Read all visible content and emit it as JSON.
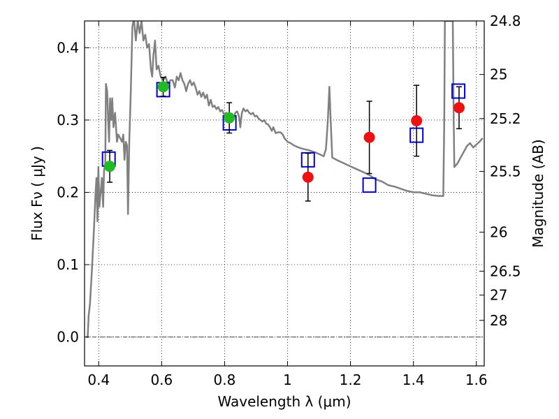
{
  "chart_data": {
    "type": "scatter",
    "xlabel": "Wavelength  λ (μm)",
    "ylabel": "Flux  Fν  ( μJy )",
    "y2label": "Magnitude (AB)",
    "xlim": [
      0.355,
      1.625
    ],
    "ylim": [
      -0.04,
      0.437
    ],
    "grid": true,
    "x_ticks": [
      0.4,
      0.6,
      0.8,
      1.0,
      1.2,
      1.4,
      1.6
    ],
    "x_tick_labels": [
      "0.4",
      "0.6",
      "0.8",
      "1",
      "1.2",
      "1.4",
      "1.6"
    ],
    "y_ticks": [
      0.0,
      0.1,
      0.2,
      0.3,
      0.4
    ],
    "y_tick_labels": [
      "0.0",
      "0.1",
      "0.2",
      "0.3",
      "0.4"
    ],
    "y2_tick_labels": [
      {
        "label": "24.8",
        "flux": 0.437
      },
      {
        "label": "25",
        "flux": 0.363
      },
      {
        "label": "25.2",
        "flux": 0.302
      },
      {
        "label": "25.5",
        "flux": 0.229
      },
      {
        "label": "26",
        "flux": 0.145
      },
      {
        "label": "26.5",
        "flux": 0.091
      },
      {
        "label": "27",
        "flux": 0.058
      },
      {
        "label": "28",
        "flux": 0.023
      }
    ],
    "colors": {
      "model": "#808080",
      "green": "#22bb22",
      "red": "#ee1111",
      "box": "#0000cc",
      "err": "#000000",
      "zero": "#444444"
    },
    "series": [
      {
        "type": "line",
        "color": "#808080",
        "points": [
          [
            0.36,
            0.0
          ],
          [
            0.365,
            0.0
          ],
          [
            0.368,
            0.03
          ],
          [
            0.372,
            0.045
          ],
          [
            0.378,
            0.09
          ],
          [
            0.385,
            0.15
          ],
          [
            0.39,
            0.2
          ],
          [
            0.393,
            0.22
          ],
          [
            0.396,
            0.16
          ],
          [
            0.399,
            0.235
          ],
          [
            0.402,
            0.18
          ],
          [
            0.406,
            0.2
          ],
          [
            0.41,
            0.22
          ],
          [
            0.414,
            0.18
          ],
          [
            0.417,
            0.23
          ],
          [
            0.421,
            0.24
          ],
          [
            0.423,
            0.35
          ],
          [
            0.427,
            0.34
          ],
          [
            0.43,
            0.3
          ],
          [
            0.433,
            0.27
          ],
          [
            0.436,
            0.33
          ],
          [
            0.44,
            0.3
          ],
          [
            0.443,
            0.33
          ],
          [
            0.447,
            0.29
          ],
          [
            0.452,
            0.31
          ],
          [
            0.458,
            0.27
          ],
          [
            0.462,
            0.28
          ],
          [
            0.468,
            0.275
          ],
          [
            0.474,
            0.27
          ],
          [
            0.478,
            0.28
          ],
          [
            0.482,
            0.245
          ],
          [
            0.486,
            0.27
          ],
          [
            0.49,
            0.265
          ],
          [
            0.493,
            0.17
          ],
          [
            0.497,
            0.27
          ],
          [
            0.502,
            0.34
          ],
          [
            0.507,
            0.43
          ],
          [
            0.512,
            0.44
          ],
          [
            0.518,
            0.41
          ],
          [
            0.524,
            0.437
          ],
          [
            0.53,
            0.42
          ],
          [
            0.536,
            0.437
          ],
          [
            0.542,
            0.41
          ],
          [
            0.548,
            0.418
          ],
          [
            0.554,
            0.4
          ],
          [
            0.56,
            0.405
          ],
          [
            0.566,
            0.37
          ],
          [
            0.57,
            0.36
          ],
          [
            0.574,
            0.39
          ],
          [
            0.579,
            0.41
          ],
          [
            0.584,
            0.37
          ],
          [
            0.59,
            0.375
          ],
          [
            0.597,
            0.36
          ],
          [
            0.605,
            0.355
          ],
          [
            0.612,
            0.36
          ],
          [
            0.62,
            0.35
          ],
          [
            0.628,
            0.355
          ],
          [
            0.635,
            0.355
          ],
          [
            0.642,
            0.345
          ],
          [
            0.648,
            0.36
          ],
          [
            0.654,
            0.355
          ],
          [
            0.66,
            0.365
          ],
          [
            0.666,
            0.355
          ],
          [
            0.672,
            0.35
          ],
          [
            0.678,
            0.34
          ],
          [
            0.684,
            0.35
          ],
          [
            0.69,
            0.355
          ],
          [
            0.696,
            0.348
          ],
          [
            0.702,
            0.352
          ],
          [
            0.708,
            0.345
          ],
          [
            0.714,
            0.335
          ],
          [
            0.72,
            0.34
          ],
          [
            0.726,
            0.332
          ],
          [
            0.732,
            0.338
          ],
          [
            0.738,
            0.33
          ],
          [
            0.744,
            0.335
          ],
          [
            0.75,
            0.32
          ],
          [
            0.756,
            0.328
          ],
          [
            0.762,
            0.318
          ],
          [
            0.768,
            0.32
          ],
          [
            0.774,
            0.315
          ],
          [
            0.78,
            0.318
          ],
          [
            0.786,
            0.312
          ],
          [
            0.792,
            0.314
          ],
          [
            0.798,
            0.308
          ],
          [
            0.805,
            0.31
          ],
          [
            0.812,
            0.305
          ],
          [
            0.82,
            0.308
          ],
          [
            0.828,
            0.3
          ],
          [
            0.834,
            0.31
          ],
          [
            0.84,
            0.312
          ],
          [
            0.846,
            0.305
          ],
          [
            0.85,
            0.29
          ],
          [
            0.855,
            0.31
          ],
          [
            0.86,
            0.316
          ],
          [
            0.866,
            0.312
          ],
          [
            0.872,
            0.314
          ],
          [
            0.878,
            0.31
          ],
          [
            0.884,
            0.308
          ],
          [
            0.89,
            0.31
          ],
          [
            0.896,
            0.305
          ],
          [
            0.902,
            0.306
          ],
          [
            0.908,
            0.302
          ],
          [
            0.914,
            0.3
          ],
          [
            0.92,
            0.298
          ],
          [
            0.926,
            0.3
          ],
          [
            0.932,
            0.295
          ],
          [
            0.938,
            0.294
          ],
          [
            0.944,
            0.29
          ],
          [
            0.95,
            0.285
          ],
          [
            0.955,
            0.29
          ],
          [
            0.962,
            0.282
          ],
          [
            0.97,
            0.283
          ],
          [
            0.978,
            0.283
          ],
          [
            0.985,
            0.28
          ],
          [
            0.99,
            0.275
          ],
          [
            1.0,
            0.27
          ],
          [
            1.01,
            0.268
          ],
          [
            1.02,
            0.265
          ],
          [
            1.035,
            0.262
          ],
          [
            1.05,
            0.26
          ],
          [
            1.07,
            0.258
          ],
          [
            1.09,
            0.255
          ],
          [
            1.105,
            0.252
          ],
          [
            1.115,
            0.25
          ],
          [
            1.122,
            0.26
          ],
          [
            1.128,
            0.3
          ],
          [
            1.133,
            0.346
          ],
          [
            1.137,
            0.3
          ],
          [
            1.142,
            0.248
          ],
          [
            1.16,
            0.244
          ],
          [
            1.18,
            0.24
          ],
          [
            1.2,
            0.236
          ],
          [
            1.22,
            0.232
          ],
          [
            1.24,
            0.228
          ],
          [
            1.26,
            0.224
          ],
          [
            1.28,
            0.218
          ],
          [
            1.3,
            0.215
          ],
          [
            1.32,
            0.21
          ],
          [
            1.34,
            0.208
          ],
          [
            1.36,
            0.205
          ],
          [
            1.38,
            0.202
          ],
          [
            1.4,
            0.2
          ],
          [
            1.42,
            0.2
          ],
          [
            1.44,
            0.198
          ],
          [
            1.46,
            0.196
          ],
          [
            1.48,
            0.195
          ],
          [
            1.495,
            0.195
          ],
          [
            1.498,
            0.3
          ],
          [
            1.5,
            0.437
          ],
          [
            1.505,
            0.437
          ],
          [
            1.52,
            0.437
          ],
          [
            1.525,
            0.437
          ],
          [
            1.528,
            0.3
          ],
          [
            1.53,
            0.235
          ],
          [
            1.54,
            0.24
          ],
          [
            1.55,
            0.248
          ],
          [
            1.56,
            0.256
          ],
          [
            1.57,
            0.264
          ],
          [
            1.58,
            0.268
          ],
          [
            1.59,
            0.262
          ],
          [
            1.6,
            0.266
          ],
          [
            1.61,
            0.27
          ],
          [
            1.62,
            0.275
          ]
        ]
      },
      {
        "type": "box",
        "color": "#0000cc",
        "points": [
          [
            0.432,
            0.246
          ],
          [
            0.605,
            0.342
          ],
          [
            0.816,
            0.296
          ],
          [
            1.065,
            0.245
          ],
          [
            1.26,
            0.21
          ],
          [
            1.41,
            0.279
          ],
          [
            1.543,
            0.34
          ]
        ]
      },
      {
        "type": "points",
        "color": "#22bb22",
        "points": [
          {
            "x": 0.435,
            "y": 0.236,
            "err": 0.022
          },
          {
            "x": 0.605,
            "y": 0.346,
            "err": 0.013
          },
          {
            "x": 0.815,
            "y": 0.303,
            "err": 0.021
          }
        ]
      },
      {
        "type": "points",
        "color": "#ee1111",
        "points": [
          {
            "x": 1.065,
            "y": 0.221,
            "err": 0.033
          },
          {
            "x": 1.26,
            "y": 0.276,
            "err": 0.05
          },
          {
            "x": 1.41,
            "y": 0.299,
            "err": 0.049
          },
          {
            "x": 1.545,
            "y": 0.317,
            "err": 0.029
          }
        ]
      }
    ]
  }
}
